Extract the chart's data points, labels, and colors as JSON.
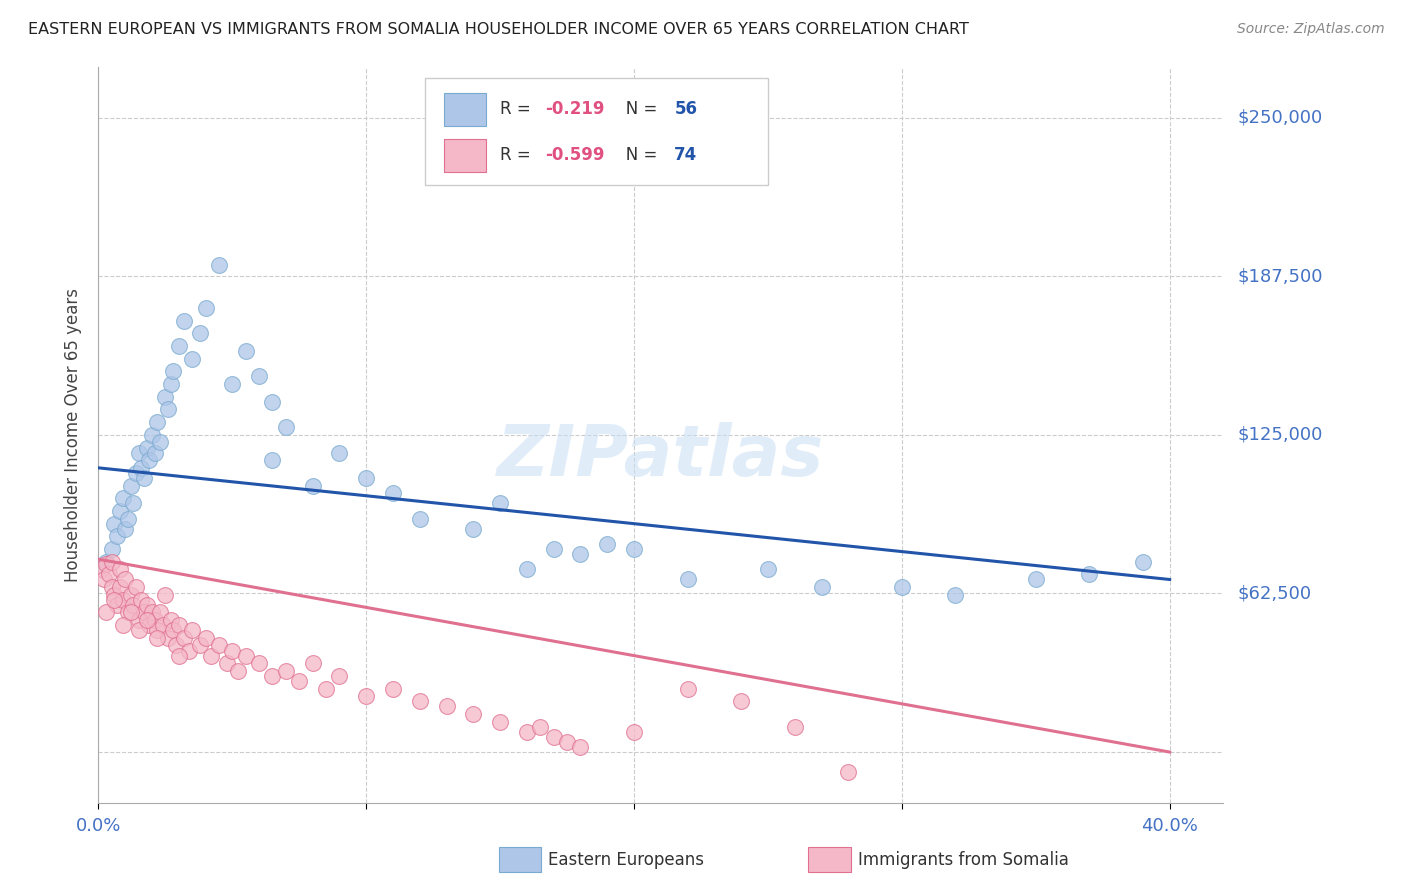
{
  "title": "EASTERN EUROPEAN VS IMMIGRANTS FROM SOMALIA HOUSEHOLDER INCOME OVER 65 YEARS CORRELATION CHART",
  "source": "Source: ZipAtlas.com",
  "ylabel": "Householder Income Over 65 years",
  "xlim": [
    0.0,
    0.42
  ],
  "ylim": [
    -20000,
    270000
  ],
  "background_color": "#ffffff",
  "ee_color": "#aec6e8",
  "ee_edge_color": "#7aaad0",
  "ee_line_color": "#2255aa",
  "si_color": "#f4b8c8",
  "si_edge_color": "#e07090",
  "si_line_color": "#e07090",
  "ee_line_x": [
    0.0,
    0.4
  ],
  "ee_line_y": [
    112000,
    68000
  ],
  "si_line_x": [
    0.0,
    0.4
  ],
  "si_line_y": [
    76000,
    0
  ],
  "ee_x": [
    0.003,
    0.005,
    0.006,
    0.007,
    0.008,
    0.009,
    0.01,
    0.011,
    0.012,
    0.013,
    0.014,
    0.015,
    0.016,
    0.017,
    0.018,
    0.019,
    0.02,
    0.021,
    0.022,
    0.023,
    0.025,
    0.026,
    0.027,
    0.028,
    0.03,
    0.032,
    0.035,
    0.038,
    0.04,
    0.045,
    0.05,
    0.055,
    0.06,
    0.065,
    0.07,
    0.1,
    0.12,
    0.15,
    0.16,
    0.18,
    0.2,
    0.22,
    0.25,
    0.27,
    0.3,
    0.32,
    0.35,
    0.37,
    0.39,
    0.065,
    0.08,
    0.09,
    0.11,
    0.14,
    0.17,
    0.19
  ],
  "ee_y": [
    75000,
    80000,
    90000,
    85000,
    95000,
    100000,
    88000,
    92000,
    105000,
    98000,
    110000,
    118000,
    112000,
    108000,
    120000,
    115000,
    125000,
    118000,
    130000,
    122000,
    140000,
    135000,
    145000,
    150000,
    160000,
    170000,
    155000,
    165000,
    175000,
    192000,
    145000,
    158000,
    148000,
    138000,
    128000,
    108000,
    92000,
    98000,
    72000,
    78000,
    80000,
    68000,
    72000,
    65000,
    65000,
    62000,
    68000,
    70000,
    75000,
    115000,
    105000,
    118000,
    102000,
    88000,
    80000,
    82000
  ],
  "si_x": [
    0.001,
    0.002,
    0.003,
    0.004,
    0.005,
    0.005,
    0.006,
    0.007,
    0.008,
    0.008,
    0.009,
    0.01,
    0.011,
    0.012,
    0.013,
    0.014,
    0.015,
    0.016,
    0.017,
    0.018,
    0.019,
    0.02,
    0.021,
    0.022,
    0.023,
    0.024,
    0.025,
    0.026,
    0.027,
    0.028,
    0.029,
    0.03,
    0.032,
    0.034,
    0.035,
    0.038,
    0.04,
    0.042,
    0.045,
    0.048,
    0.05,
    0.052,
    0.055,
    0.06,
    0.065,
    0.07,
    0.075,
    0.08,
    0.085,
    0.09,
    0.1,
    0.11,
    0.12,
    0.13,
    0.14,
    0.15,
    0.16,
    0.165,
    0.17,
    0.175,
    0.18,
    0.2,
    0.22,
    0.24,
    0.26,
    0.28,
    0.003,
    0.006,
    0.009,
    0.012,
    0.015,
    0.018,
    0.022,
    0.03
  ],
  "si_y": [
    72000,
    68000,
    74000,
    70000,
    65000,
    75000,
    62000,
    58000,
    72000,
    65000,
    60000,
    68000,
    55000,
    62000,
    58000,
    65000,
    52000,
    60000,
    55000,
    58000,
    50000,
    55000,
    52000,
    48000,
    55000,
    50000,
    62000,
    45000,
    52000,
    48000,
    42000,
    50000,
    45000,
    40000,
    48000,
    42000,
    45000,
    38000,
    42000,
    35000,
    40000,
    32000,
    38000,
    35000,
    30000,
    32000,
    28000,
    35000,
    25000,
    30000,
    22000,
    25000,
    20000,
    18000,
    15000,
    12000,
    8000,
    10000,
    6000,
    4000,
    2000,
    8000,
    25000,
    20000,
    10000,
    -8000,
    55000,
    60000,
    50000,
    55000,
    48000,
    52000,
    45000,
    38000
  ],
  "y_ticks": [
    0,
    62500,
    125000,
    187500,
    250000
  ],
  "x_ticks": [
    0.0,
    0.1,
    0.2,
    0.3,
    0.4
  ],
  "legend_r_ee": "-0.219",
  "legend_n_ee": "56",
  "legend_r_si": "-0.599",
  "legend_n_si": "74",
  "legend_label_ee": "Eastern Europeans",
  "legend_label_si": "Immigrants from Somalia"
}
